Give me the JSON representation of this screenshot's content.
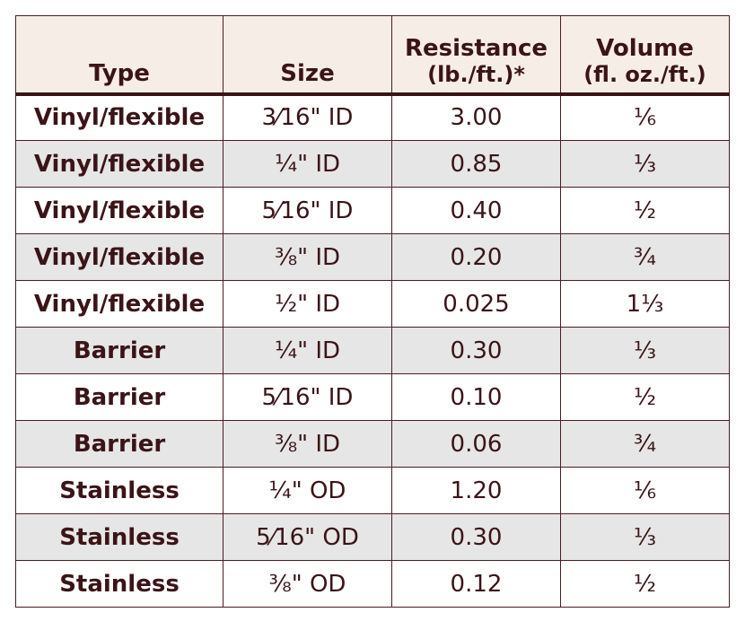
{
  "headers": {
    "type": "Type",
    "size": "Size",
    "resistance": "Resistance",
    "resistance_unit": "(lb./ft.)*",
    "volume": "Volume",
    "volume_unit": "(fl. oz./ft.)"
  },
  "rows": [
    {
      "type": "Vinyl/flexible",
      "size": "3⁄16\" ID",
      "resistance": "3.00",
      "volume": "⅙"
    },
    {
      "type": "Vinyl/flexible",
      "size": "¼\" ID",
      "resistance": "0.85",
      "volume": "⅓"
    },
    {
      "type": "Vinyl/flexible",
      "size": "5⁄16\" ID",
      "resistance": "0.40",
      "volume": "½"
    },
    {
      "type": "Vinyl/flexible",
      "size": "⅜\" ID",
      "resistance": "0.20",
      "volume": "¾"
    },
    {
      "type": "Vinyl/flexible",
      "size": "½\" ID",
      "resistance": "0.025",
      "volume": "1⅓"
    },
    {
      "type": "Barrier",
      "size": "¼\" ID",
      "resistance": "0.30",
      "volume": "⅓"
    },
    {
      "type": "Barrier",
      "size": "5⁄16\" ID",
      "resistance": "0.10",
      "volume": "½"
    },
    {
      "type": "Barrier",
      "size": "⅜\" ID",
      "resistance": "0.06",
      "volume": "¾"
    },
    {
      "type": "Stainless",
      "size": "¼\" OD",
      "resistance": "1.20",
      "volume": "⅙"
    },
    {
      "type": "Stainless",
      "size": "5⁄16\" OD",
      "resistance": "0.30",
      "volume": "⅓"
    },
    {
      "type": "Stainless",
      "size": "⅜\" OD",
      "resistance": "0.12",
      "volume": "½"
    }
  ]
}
